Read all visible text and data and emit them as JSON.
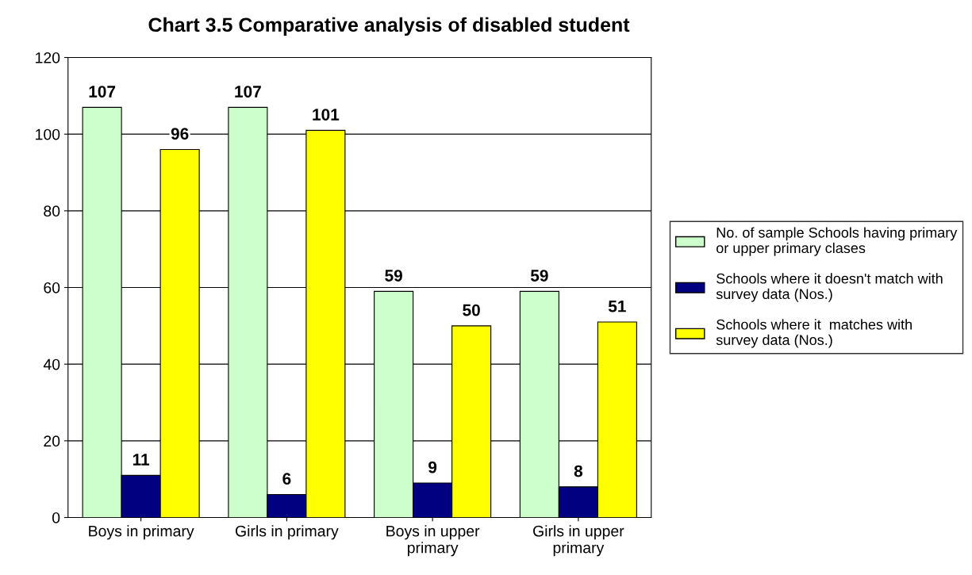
{
  "chart_data": {
    "type": "bar",
    "title": "Chart 3.5 Comparative analysis of disabled student",
    "categories": [
      "Boys in primary",
      "Girls in primary",
      "Boys in upper primary",
      "Girls in upper primary"
    ],
    "series": [
      {
        "name": "No. of sample Schools having primary or upper primary clases",
        "color": "#ccffcc",
        "values": [
          107,
          107,
          59,
          59
        ]
      },
      {
        "name": "Schools where it doesn't match with survey data (Nos.)",
        "color": "#000080",
        "values": [
          11,
          6,
          9,
          8
        ]
      },
      {
        "name": "Schools where it  matches with survey data (Nos.)",
        "color": "#ffff00",
        "values": [
          96,
          101,
          50,
          51
        ]
      }
    ],
    "ylim": [
      0,
      120
    ],
    "yticks": [
      0,
      20,
      40,
      60,
      80,
      100,
      120
    ],
    "grid": "y",
    "legend": "right",
    "data_labels": true
  }
}
